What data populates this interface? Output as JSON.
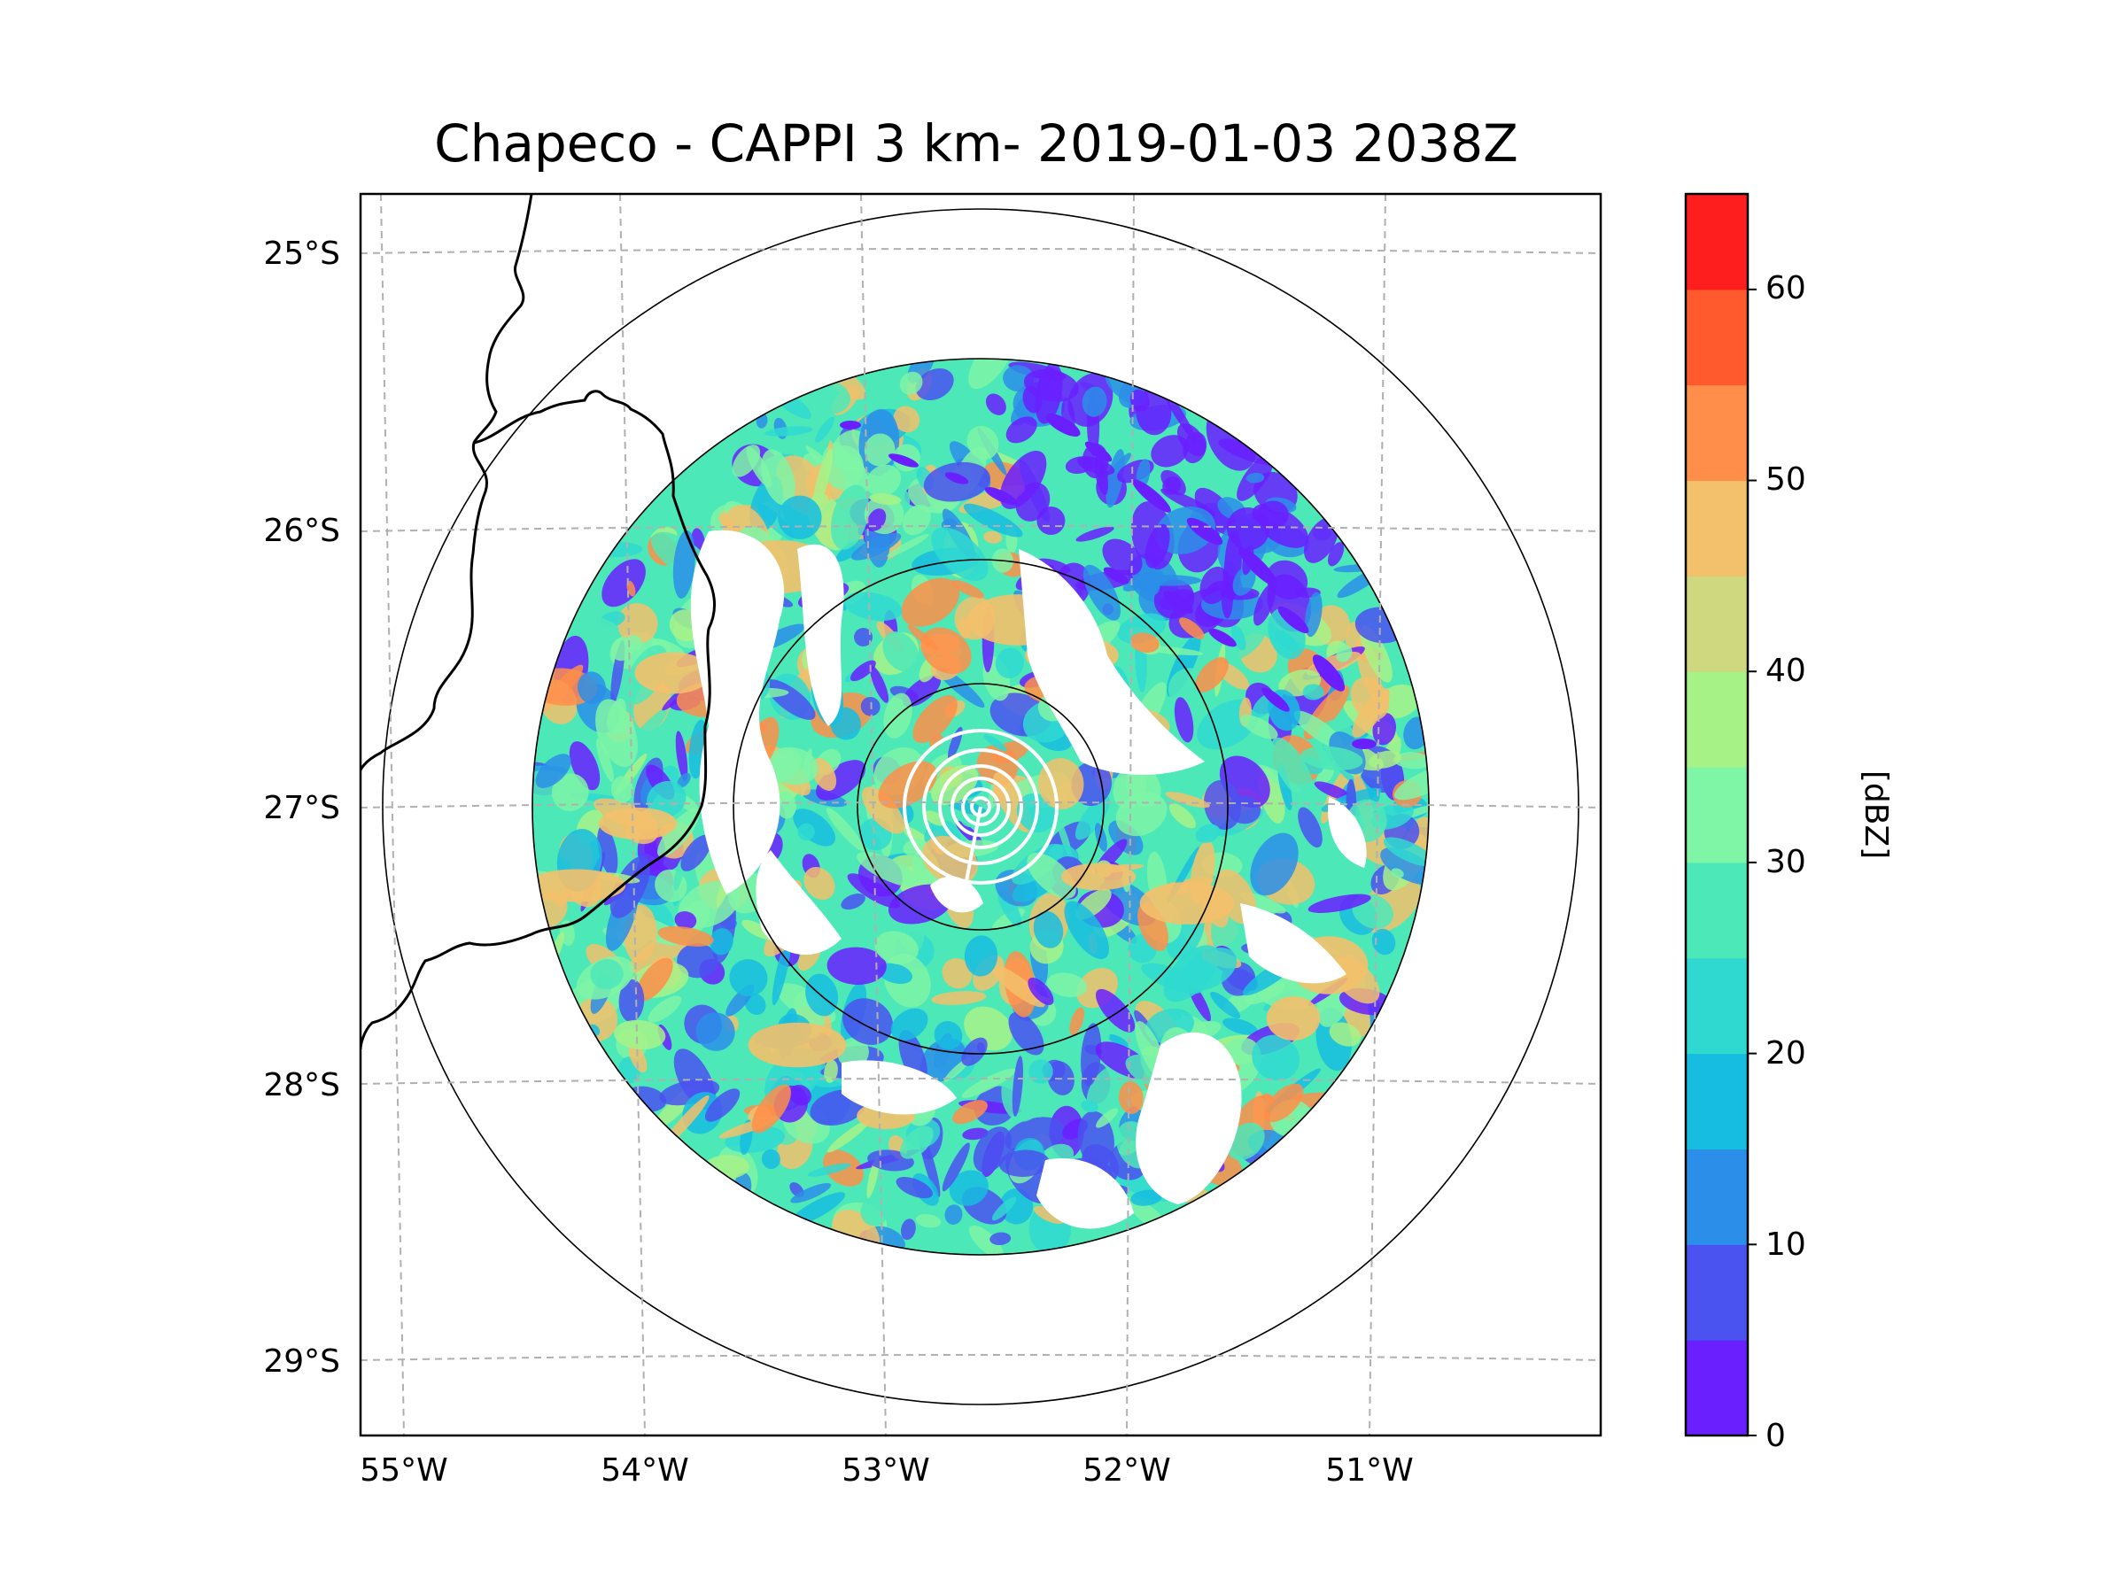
{
  "title": "Chapeco - CAPPI 3 km- 2019-01-03 2038Z",
  "map": {
    "lat_labels": [
      "25°S",
      "26°S",
      "27°S",
      "28°S",
      "29°S"
    ],
    "lon_labels": [
      "55°W",
      "54°W",
      "53°W",
      "52°W",
      "51°W"
    ],
    "range_rings_count": 4
  },
  "colorbar": {
    "label": "[dBZ]",
    "ticks": [
      "0",
      "10",
      "20",
      "30",
      "40",
      "50",
      "60"
    ],
    "levels": [
      {
        "min": 0,
        "max": 5,
        "color": "#6a1fff"
      },
      {
        "min": 5,
        "max": 10,
        "color": "#4a52f0"
      },
      {
        "min": 10,
        "max": 15,
        "color": "#2b8ee8"
      },
      {
        "min": 15,
        "max": 20,
        "color": "#17bde0"
      },
      {
        "min": 20,
        "max": 25,
        "color": "#2fd9d0"
      },
      {
        "min": 25,
        "max": 30,
        "color": "#4de8b8"
      },
      {
        "min": 30,
        "max": 35,
        "color": "#7ff5a6"
      },
      {
        "min": 35,
        "max": 40,
        "color": "#a7f287"
      },
      {
        "min": 40,
        "max": 45,
        "color": "#cfd77f"
      },
      {
        "min": 45,
        "max": 50,
        "color": "#f3c06b"
      },
      {
        "min": 50,
        "max": 55,
        "color": "#ff8e4a"
      },
      {
        "min": 55,
        "max": 60,
        "color": "#ff5a2e"
      },
      {
        "min": 60,
        "max": 65,
        "color": "#ff1e1e"
      }
    ]
  }
}
